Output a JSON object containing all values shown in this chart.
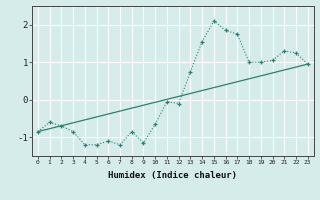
{
  "title": "",
  "xlabel": "Humidex (Indice chaleur)",
  "x_ticks": [
    0,
    1,
    2,
    3,
    4,
    5,
    6,
    7,
    8,
    9,
    10,
    11,
    12,
    13,
    14,
    15,
    16,
    17,
    18,
    19,
    20,
    21,
    22,
    23
  ],
  "ylim": [
    -1.5,
    2.5
  ],
  "xlim": [
    -0.5,
    23.5
  ],
  "yticks": [
    -1,
    0,
    1,
    2
  ],
  "background_color": "#d5ecea",
  "grid_color": "#ffffff",
  "line_color": "#2e7d6e",
  "curve_x": [
    0,
    1,
    2,
    3,
    4,
    5,
    6,
    7,
    8,
    9,
    10,
    11,
    12,
    13,
    14,
    15,
    16,
    17,
    18,
    19,
    20,
    21,
    22,
    23
  ],
  "curve_y": [
    -0.85,
    -0.6,
    -0.7,
    -0.85,
    -1.2,
    -1.2,
    -1.1,
    -1.2,
    -0.85,
    -1.15,
    -0.65,
    -0.05,
    -0.1,
    0.75,
    1.55,
    2.1,
    1.85,
    1.75,
    1.0,
    1.0,
    1.05,
    1.3,
    1.25,
    0.95
  ],
  "line_x": [
    0,
    23
  ],
  "line_y": [
    -0.85,
    0.95
  ]
}
